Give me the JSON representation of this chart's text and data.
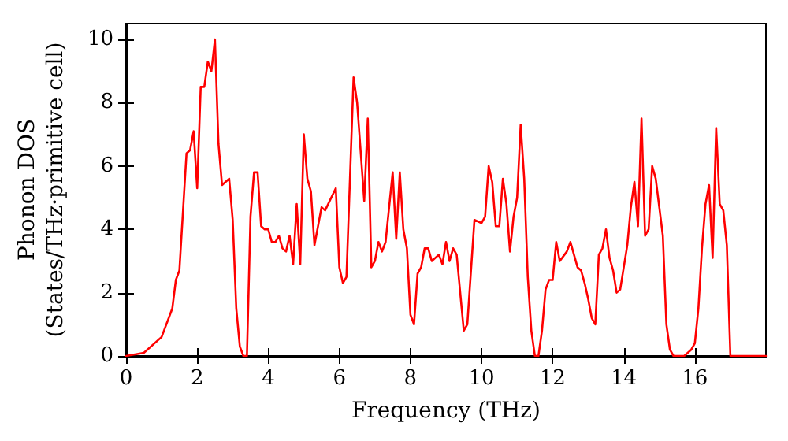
{
  "chart_data": {
    "type": "line",
    "xlabel": "Frequency (THz)",
    "ylabel": "Phonon DOS\n(States/THz·primitive cell)",
    "xlim": [
      0,
      18
    ],
    "xticks": [
      0,
      2,
      4,
      6,
      8,
      10,
      12,
      14,
      16
    ],
    "ylim": [
      0,
      10.5
    ],
    "yticks": [
      0,
      2,
      4,
      6,
      8,
      10
    ],
    "marker": "none",
    "line_style": "solid",
    "series": [
      {
        "color": "#ff0000",
        "x": [
          0,
          0.5,
          1.0,
          1.3,
          1.4,
          1.5,
          1.7,
          1.8,
          1.9,
          2.0,
          2.1,
          2.2,
          2.3,
          2.4,
          2.5,
          2.6,
          2.7,
          2.8,
          2.9,
          3.0,
          3.1,
          3.2,
          3.3,
          3.4,
          3.5,
          3.6,
          3.7,
          3.8,
          3.9,
          4.0,
          4.1,
          4.2,
          4.3,
          4.4,
          4.5,
          4.6,
          4.7,
          4.8,
          4.9,
          5.0,
          5.1,
          5.2,
          5.3,
          5.5,
          5.6,
          5.9,
          6.0,
          6.1,
          6.2,
          6.4,
          6.5,
          6.7,
          6.8,
          6.9,
          7.0,
          7.1,
          7.2,
          7.3,
          7.5,
          7.6,
          7.7,
          7.8,
          7.9,
          8.0,
          8.1,
          8.2,
          8.3,
          8.4,
          8.5,
          8.6,
          8.8,
          8.9,
          9.0,
          9.1,
          9.2,
          9.3,
          9.5,
          9.6,
          9.8,
          10.0,
          10.1,
          10.2,
          10.3,
          10.4,
          10.5,
          10.6,
          10.7,
          10.8,
          10.9,
          11.0,
          11.1,
          11.2,
          11.3,
          11.4,
          11.5,
          11.6,
          11.7,
          11.8,
          11.9,
          12.0,
          12.1,
          12.2,
          12.4,
          12.5,
          12.6,
          12.7,
          12.8,
          12.9,
          13.0,
          13.1,
          13.2,
          13.3,
          13.4,
          13.5,
          13.6,
          13.7,
          13.8,
          13.9,
          14.1,
          14.2,
          14.3,
          14.4,
          14.5,
          14.6,
          14.7,
          14.8,
          14.9,
          15.1,
          15.2,
          15.3,
          15.4,
          15.7,
          15.9,
          16.0,
          16.1,
          16.2,
          16.3,
          16.4,
          16.5,
          16.6,
          16.7,
          16.8,
          16.9,
          17.0,
          18.0
        ],
        "values": [
          0,
          0.1,
          0.6,
          1.5,
          2.4,
          2.7,
          6.4,
          6.5,
          7.1,
          5.3,
          8.5,
          8.5,
          9.3,
          9.0,
          10.0,
          6.7,
          5.4,
          5.5,
          5.6,
          4.3,
          1.5,
          0.3,
          0.0,
          0.0,
          4.4,
          5.8,
          5.8,
          4.1,
          4.0,
          4.0,
          3.6,
          3.6,
          3.8,
          3.4,
          3.3,
          3.8,
          2.9,
          4.8,
          2.9,
          7.0,
          5.6,
          5.2,
          3.5,
          4.7,
          4.6,
          5.3,
          2.8,
          2.3,
          2.5,
          8.8,
          8.0,
          4.9,
          7.5,
          2.8,
          3.0,
          3.6,
          3.3,
          3.6,
          5.8,
          3.7,
          5.8,
          4.0,
          3.4,
          1.3,
          1.0,
          2.6,
          2.8,
          3.4,
          3.4,
          3.0,
          3.2,
          2.9,
          3.6,
          3.0,
          3.4,
          3.2,
          0.8,
          1.0,
          4.3,
          4.2,
          4.4,
          6.0,
          5.5,
          4.1,
          4.1,
          5.6,
          4.8,
          3.3,
          4.4,
          5.0,
          7.3,
          5.6,
          2.5,
          0.8,
          0.0,
          0.0,
          0.8,
          2.1,
          2.4,
          2.4,
          3.6,
          3.0,
          3.3,
          3.6,
          3.2,
          2.8,
          2.7,
          2.3,
          1.8,
          1.2,
          1.0,
          3.2,
          3.4,
          4.0,
          3.1,
          2.7,
          2.0,
          2.1,
          3.5,
          4.7,
          5.5,
          4.1,
          7.5,
          3.8,
          4.0,
          6.0,
          5.6,
          3.8,
          1.0,
          0.2,
          0.0,
          0.0,
          0.2,
          0.4,
          1.5,
          3.4,
          4.8,
          5.4,
          3.1,
          7.2,
          4.8,
          4.6,
          3.5,
          0.0,
          0.0
        ]
      }
    ]
  }
}
